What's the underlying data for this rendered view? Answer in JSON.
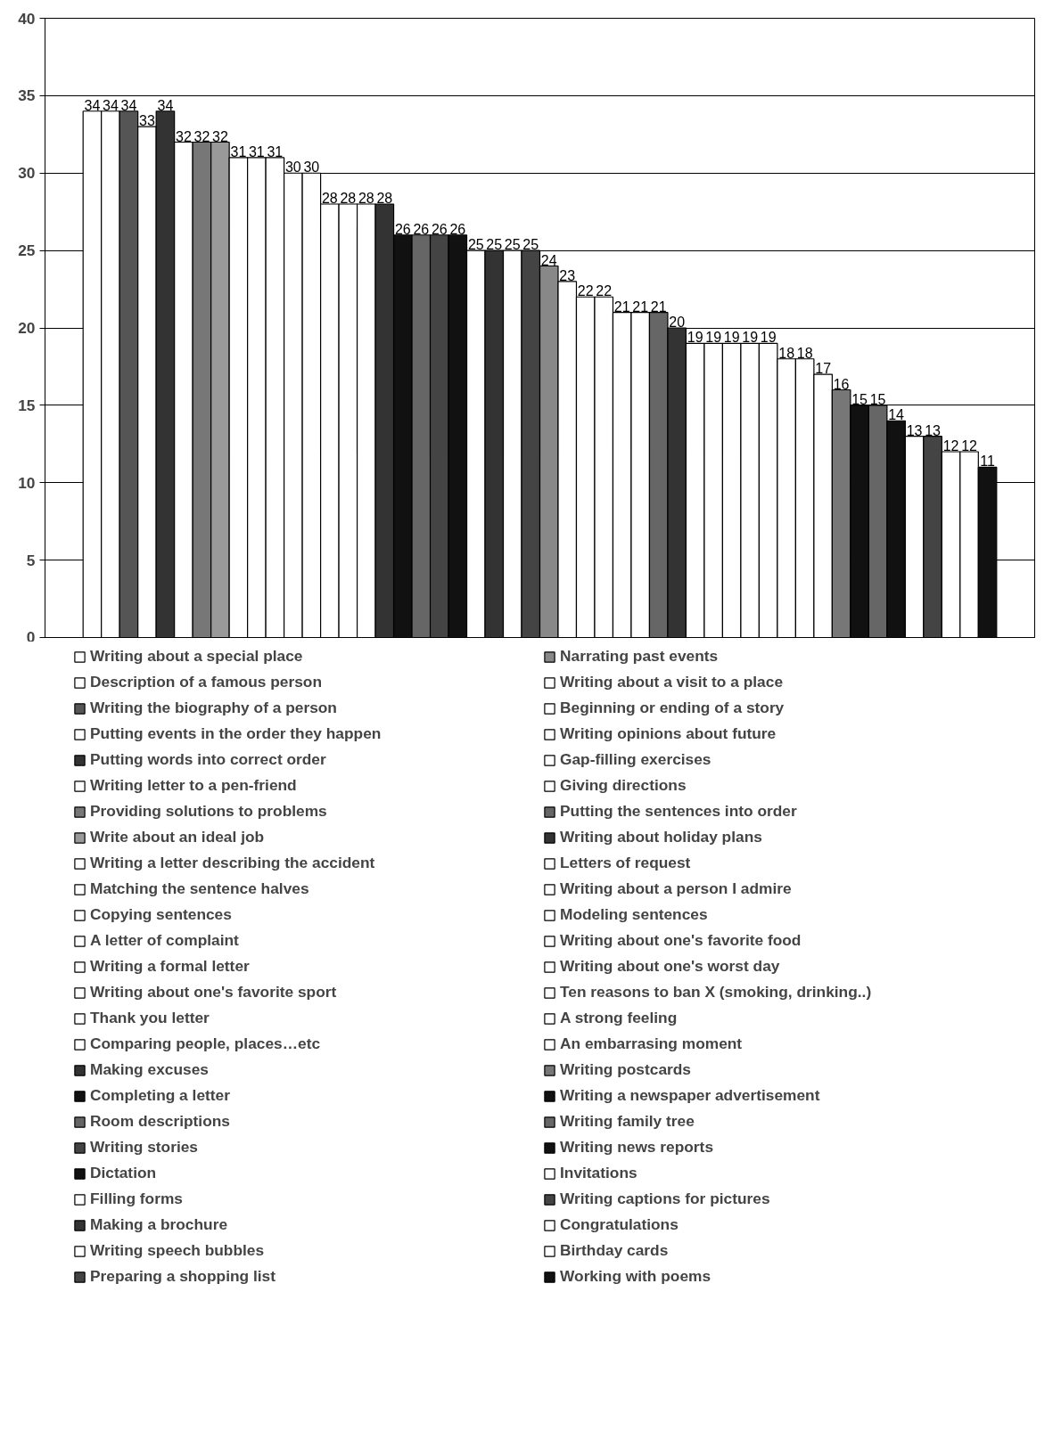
{
  "chart_data": {
    "type": "bar",
    "categories": [
      null
    ],
    "ylim": [
      0,
      40
    ],
    "yticks": [
      0,
      5,
      10,
      15,
      20,
      25,
      30,
      35,
      40
    ],
    "grid": "y",
    "legend": "bottom",
    "data_labels": true,
    "series": [
      {
        "name": "Writing about a special place",
        "color": "#ffffff",
        "values": [
          34
        ]
      },
      {
        "name": "Description of a famous person",
        "color": "#ffffff",
        "values": [
          34
        ]
      },
      {
        "name": "Writing the biography of a person",
        "color": "#555555",
        "values": [
          34
        ]
      },
      {
        "name": "Putting events in the order they happen",
        "color": "#ffffff",
        "values": [
          33
        ]
      },
      {
        "name": "Putting words into correct order",
        "color": "#333333",
        "values": [
          34
        ]
      },
      {
        "name": "Writing letter to a pen-friend",
        "color": "#ffffff",
        "values": [
          32
        ]
      },
      {
        "name": "Providing solutions to problems",
        "color": "#777777",
        "values": [
          32
        ]
      },
      {
        "name": "Write about an ideal job",
        "color": "#999999",
        "values": [
          32
        ]
      },
      {
        "name": "Writing a letter describing the accident",
        "color": "#ffffff",
        "values": [
          31
        ]
      },
      {
        "name": "Matching the sentence halves",
        "color": "#ffffff",
        "values": [
          31
        ]
      },
      {
        "name": "Copying sentences",
        "color": "#ffffff",
        "values": [
          31
        ]
      },
      {
        "name": "A letter of complaint",
        "color": "#ffffff",
        "values": [
          30
        ]
      },
      {
        "name": "Writing a formal letter",
        "color": "#ffffff",
        "values": [
          30
        ]
      },
      {
        "name": "Writing about one's favorite sport",
        "color": "#ffffff",
        "values": [
          28
        ]
      },
      {
        "name": "Thank you letter",
        "color": "#ffffff",
        "values": [
          28
        ]
      },
      {
        "name": "Comparing people, places…etc",
        "color": "#ffffff",
        "values": [
          28
        ]
      },
      {
        "name": "Making excuses",
        "color": "#333333",
        "values": [
          28
        ]
      },
      {
        "name": "Completing a letter",
        "color": "#111111",
        "values": [
          26
        ]
      },
      {
        "name": "Room descriptions",
        "color": "#666666",
        "values": [
          26
        ]
      },
      {
        "name": "Writing stories",
        "color": "#444444",
        "values": [
          26
        ]
      },
      {
        "name": "Dictation",
        "color": "#111111",
        "values": [
          26
        ]
      },
      {
        "name": "Filling forms",
        "color": "#ffffff",
        "values": [
          25
        ]
      },
      {
        "name": "Making a brochure",
        "color": "#333333",
        "values": [
          25
        ]
      },
      {
        "name": "Writing speech bubbles",
        "color": "#ffffff",
        "values": [
          25
        ]
      },
      {
        "name": "Preparing a shopping list",
        "color": "#444444",
        "values": [
          25
        ]
      },
      {
        "name": "Narrating past events",
        "color": "#888888",
        "values": [
          24
        ]
      },
      {
        "name": "Writing about a visit to a place",
        "color": "#ffffff",
        "values": [
          23
        ]
      },
      {
        "name": "Beginning or ending of a story",
        "color": "#ffffff",
        "values": [
          22
        ]
      },
      {
        "name": "Writing opinions about future",
        "color": "#ffffff",
        "values": [
          22
        ]
      },
      {
        "name": "Gap-filling exercises",
        "color": "#ffffff",
        "values": [
          21
        ]
      },
      {
        "name": "Giving directions",
        "color": "#ffffff",
        "values": [
          21
        ]
      },
      {
        "name": "Putting the sentences into order",
        "color": "#666666",
        "values": [
          21
        ]
      },
      {
        "name": "Writing about holiday plans",
        "color": "#333333",
        "values": [
          20
        ]
      },
      {
        "name": "Letters of request",
        "color": "#ffffff",
        "values": [
          19
        ]
      },
      {
        "name": "Writing about a person I admire",
        "color": "#ffffff",
        "values": [
          19
        ]
      },
      {
        "name": "Modeling sentences",
        "color": "#ffffff",
        "values": [
          19
        ]
      },
      {
        "name": "Writing about one's favorite food",
        "color": "#ffffff",
        "values": [
          19
        ]
      },
      {
        "name": "Writing about one's worst day",
        "color": "#ffffff",
        "values": [
          19
        ]
      },
      {
        "name": "Ten reasons to ban X (smoking, drinking..)",
        "color": "#ffffff",
        "values": [
          18
        ]
      },
      {
        "name": "A strong feeling",
        "color": "#ffffff",
        "values": [
          18
        ]
      },
      {
        "name": "An embarrasing moment",
        "color": "#ffffff",
        "values": [
          17
        ]
      },
      {
        "name": "Writing postcards",
        "color": "#777777",
        "values": [
          16
        ]
      },
      {
        "name": "Writing a newspaper advertisement",
        "color": "#111111",
        "values": [
          15
        ]
      },
      {
        "name": "Writing family tree",
        "color": "#666666",
        "values": [
          15
        ]
      },
      {
        "name": "Writing news reports",
        "color": "#111111",
        "values": [
          14
        ]
      },
      {
        "name": "Invitations",
        "color": "#ffffff",
        "values": [
          13
        ]
      },
      {
        "name": "Writing captions for pictures",
        "color": "#444444",
        "values": [
          13
        ]
      },
      {
        "name": "Congratulations",
        "color": "#ffffff",
        "values": [
          12
        ]
      },
      {
        "name": "Birthday cards",
        "color": "#ffffff",
        "values": [
          12
        ]
      },
      {
        "name": "Working with poems",
        "color": "#111111",
        "values": [
          11
        ]
      }
    ]
  }
}
